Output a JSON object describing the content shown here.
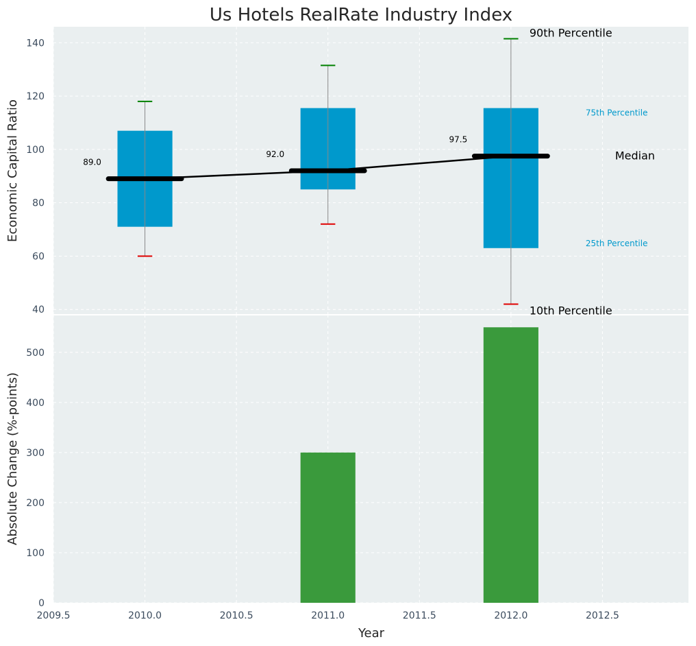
{
  "chart_data": [
    {
      "type": "box",
      "title": "Us Hotels RealRate Industry Index",
      "xlabel": "",
      "ylabel": "Economic Capital Ratio",
      "ylim": [
        38,
        146
      ],
      "yticks": [
        40,
        60,
        80,
        100,
        120,
        140
      ],
      "categories": [
        2010,
        2011,
        2012
      ],
      "boxes": [
        {
          "year": 2010,
          "p10": 60,
          "p25": 71,
          "median": 89.0,
          "median_label": "89.0",
          "p75": 107,
          "p90": 118
        },
        {
          "year": 2011,
          "p10": 72,
          "p25": 85,
          "median": 92.0,
          "median_label": "92.0",
          "p75": 115.5,
          "p90": 131.5
        },
        {
          "year": 2012,
          "p10": 42,
          "p25": 63,
          "median": 97.5,
          "median_label": "97.5",
          "p75": 115.5,
          "p90": 141.5
        }
      ],
      "annotations": {
        "p90": "90th Percentile",
        "p75": "75th Percentile",
        "median": "Median",
        "p25": "25th Percentile",
        "p10": "10th Percentile"
      },
      "colors": {
        "box": "#0099cc",
        "median": "#000000",
        "p90_cap": "#008000",
        "p10_cap": "#e00000",
        "whisker": "#888888",
        "annot_small": "#0099cc"
      }
    },
    {
      "type": "bar",
      "xlabel": "Year",
      "ylabel": "Absolute Change (%-points)",
      "xlim": [
        2009.5,
        2012.97
      ],
      "xticks": [
        2009.5,
        2010.0,
        2010.5,
        2011.0,
        2011.5,
        2012.0,
        2012.5
      ],
      "xtick_labels": [
        "2009.5",
        "2010.0",
        "2010.5",
        "2011.0",
        "2011.5",
        "2012.0",
        "2012.5"
      ],
      "ylim": [
        0,
        575
      ],
      "yticks": [
        0,
        100,
        200,
        300,
        400,
        500
      ],
      "categories": [
        2010,
        2011,
        2012
      ],
      "values": [
        0,
        300,
        550
      ],
      "bar_width": 0.3,
      "colors": {
        "bar": "#3a9a3c"
      }
    }
  ]
}
